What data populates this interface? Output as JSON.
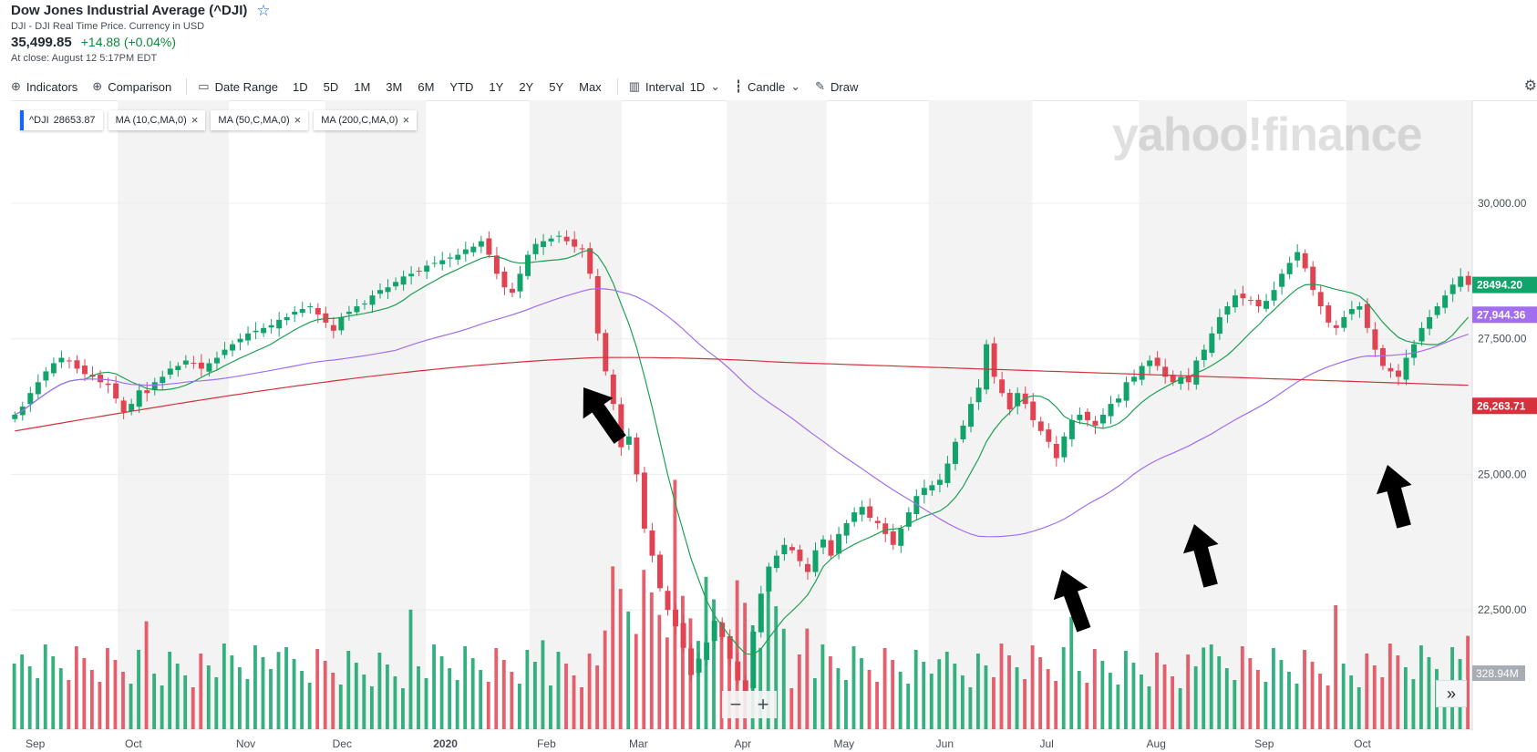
{
  "header": {
    "title": "Dow Jones Industrial Average (^DJI)",
    "subtitle": "DJI - DJI Real Time Price. Currency in USD",
    "price": "35,499.85",
    "change": "+14.88 (+0.04%)",
    "close_time": "At close: August 12 5:17PM EDT"
  },
  "toolbar": {
    "indicators": "Indicators",
    "comparison": "Comparison",
    "date_range": "Date Range",
    "ranges": [
      "1D",
      "5D",
      "1M",
      "3M",
      "6M",
      "YTD",
      "1Y",
      "2Y",
      "5Y",
      "Max"
    ],
    "interval_label": "Interval",
    "interval_value": "1D",
    "chart_type": "Candle",
    "draw": "Draw"
  },
  "legend": {
    "symbol": "^DJI",
    "symbol_value": "28653.87",
    "ma10": "MA (10,C,MA,0)",
    "ma50": "MA (50,C,MA,0)",
    "ma200": "MA (200,C,MA,0)"
  },
  "watermark": "yahoo!finance",
  "colors": {
    "up": "#12a36a",
    "down": "#e04453",
    "ma10": "#1ea050",
    "ma50": "#a16ef0",
    "ma200": "#d5313c",
    "band": "#f3f3f3"
  },
  "chart_data": {
    "type": "candlestick",
    "x_labels": [
      "Sep",
      "Oct",
      "Nov",
      "Dec",
      "2020",
      "Feb",
      "Mar",
      "Apr",
      "May",
      "Jun",
      "Jul",
      "Aug",
      "Sep",
      "Oct"
    ],
    "y_ticks": [
      "30,000.00",
      "27,500.00",
      "25,000.00",
      "22,500.00"
    ],
    "y_tick_values": [
      30000,
      27500,
      25000,
      22500
    ],
    "ylim": [
      20300,
      31900
    ],
    "price_flags": [
      {
        "label": "28494.20",
        "value": 28494.2,
        "color": "#12a36a"
      },
      {
        "label": "27,944.36",
        "value": 27944.36,
        "color": "#a16ef0"
      },
      {
        "label": "26,263.71",
        "value": 26263.71,
        "color": "#d5313c"
      }
    ],
    "volume_flag": "328.94M",
    "closes": [
      26100,
      26250,
      26500,
      26700,
      26900,
      27050,
      27150,
      27100,
      26950,
      26850,
      26800,
      26700,
      26650,
      26400,
      26150,
      26300,
      26550,
      26500,
      26700,
      26800,
      26950,
      27000,
      27100,
      27050,
      26950,
      27050,
      27150,
      27300,
      27400,
      27500,
      27600,
      27650,
      27700,
      27750,
      27850,
      27900,
      28000,
      28050,
      28100,
      27950,
      27800,
      27650,
      27900,
      28000,
      28100,
      28150,
      28300,
      28400,
      28450,
      28550,
      28650,
      28700,
      28750,
      28850,
      28900,
      28950,
      29000,
      29050,
      29150,
      29200,
      29300,
      29050,
      28700,
      28450,
      28350,
      28700,
      29050,
      29250,
      29300,
      29350,
      29400,
      29300,
      29200,
      29150,
      28700,
      27600,
      26900,
      26300,
      25500,
      25700,
      25000,
      24000,
      23500,
      22900,
      22500,
      22200,
      21800,
      21300,
      21600,
      21900,
      22300,
      22000,
      21600,
      21200,
      21000,
      22100,
      22800,
      23300,
      23500,
      23700,
      23600,
      23400,
      23200,
      23600,
      23800,
      23500,
      23900,
      24100,
      24300,
      24400,
      24200,
      24100,
      23900,
      23700,
      24000,
      24300,
      24600,
      24750,
      24800,
      24900,
      25200,
      25600,
      25900,
      26300,
      26600,
      27400,
      26800,
      26500,
      26200,
      26500,
      26300,
      26000,
      25800,
      25600,
      25300,
      25700,
      26000,
      26100,
      26000,
      25900,
      26100,
      26300,
      26400,
      26700,
      26800,
      27000,
      27100,
      27000,
      26800,
      26700,
      26800,
      26700,
      27100,
      27300,
      27600,
      27900,
      28100,
      28300,
      28250,
      28200,
      28100,
      28200,
      28400,
      28700,
      28900,
      29100,
      28800,
      28400,
      28100,
      27800,
      27700,
      27900,
      28050,
      28100,
      27700,
      27300,
      27000,
      26900,
      26800,
      27150,
      27400,
      27700,
      27900,
      28100,
      28300,
      28500,
      28650,
      28494
    ]
  }
}
